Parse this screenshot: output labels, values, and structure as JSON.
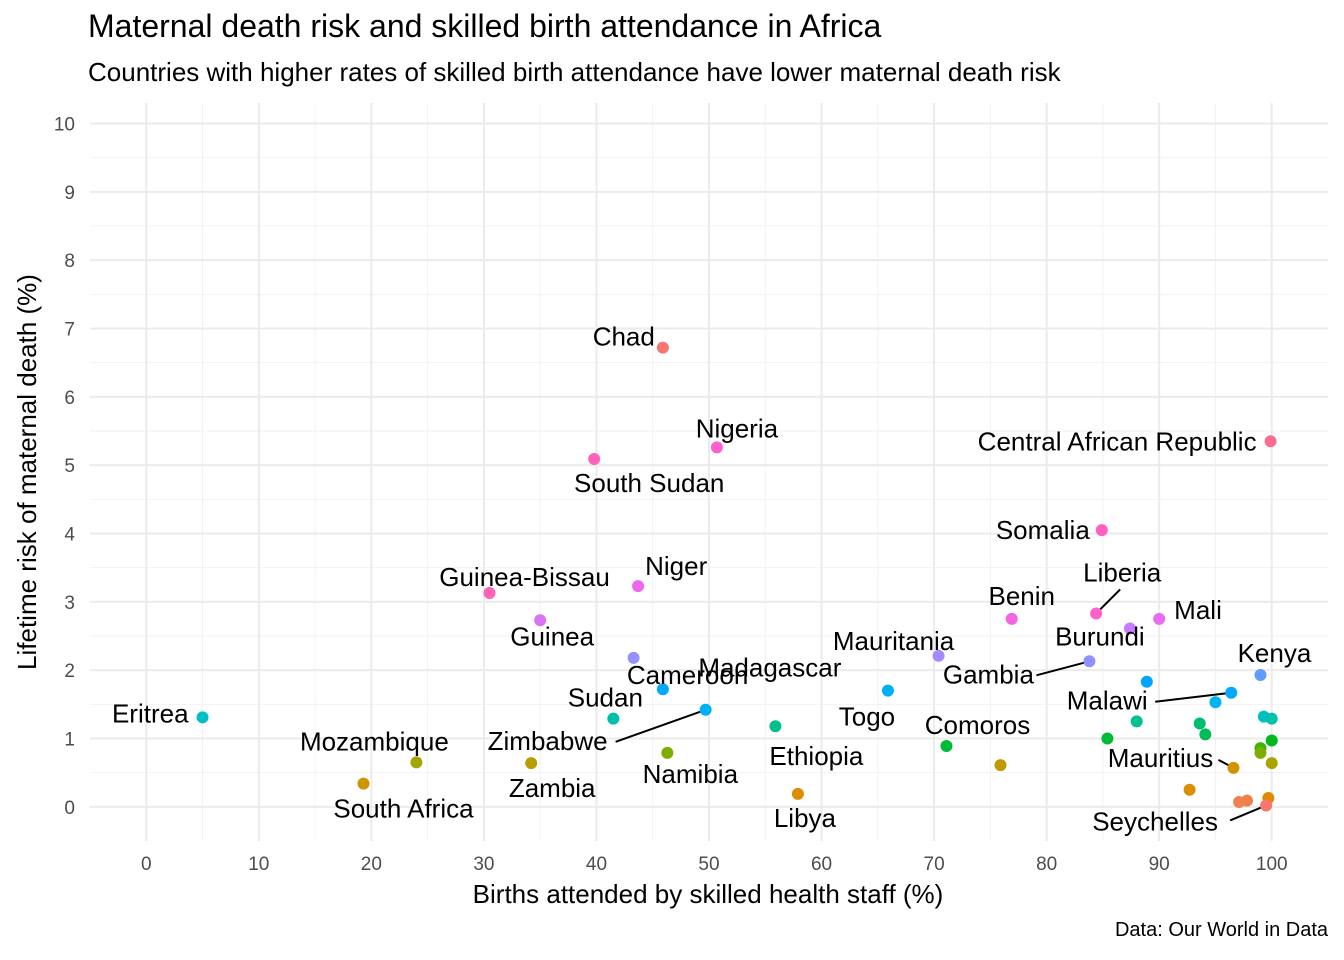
{
  "chart_data": {
    "type": "scatter",
    "title": "Maternal death risk and skilled birth attendance in Africa",
    "subtitle": "Countries with higher rates of skilled birth attendance have lower maternal death risk",
    "caption": "Data: Our World in Data",
    "xlabel": "Births attended by skilled health staff (%)",
    "ylabel": "Lifetime risk of maternal death (%)",
    "xlim": [
      -5,
      105
    ],
    "ylim": [
      -0.5,
      10.3
    ],
    "x_ticks": [
      0,
      10,
      20,
      30,
      40,
      50,
      60,
      70,
      80,
      90,
      100
    ],
    "y_ticks": [
      0,
      1,
      2,
      3,
      4,
      5,
      6,
      7,
      8,
      9,
      10
    ],
    "grid": true,
    "legend": "none",
    "points": [
      {
        "label": "Chad",
        "x": 45.9,
        "y": 6.72,
        "color": "#F8766D"
      },
      {
        "label": "Nigeria",
        "x": 50.7,
        "y": 5.26,
        "color": "#FD61D1"
      },
      {
        "label": "South Sudan",
        "x": 39.8,
        "y": 5.09,
        "color": "#FF62BC"
      },
      {
        "label": "Central African Republic",
        "x": 99.9,
        "y": 5.35,
        "color": "#FF6C91"
      },
      {
        "label": "Somalia",
        "x": 84.9,
        "y": 4.05,
        "color": "#FF61C3"
      },
      {
        "label": "Guinea-Bissau",
        "x": 30.5,
        "y": 3.13,
        "color": "#FF63B6"
      },
      {
        "label": "Niger",
        "x": 43.7,
        "y": 3.23,
        "color": "#F066EA"
      },
      {
        "label": "Liberia",
        "x": 84.4,
        "y": 2.83,
        "color": "#FF61C9"
      },
      {
        "label": "Guinea",
        "x": 35.0,
        "y": 2.73,
        "color": "#DB72FB"
      },
      {
        "label": "Benin",
        "x": 76.9,
        "y": 2.75,
        "color": "#F564E3"
      },
      {
        "label": "Mali",
        "x": 90.0,
        "y": 2.75,
        "color": "#E76BF3"
      },
      {
        "label": "Burundi",
        "x": 87.4,
        "y": 2.61,
        "color": "#C77CFF"
      },
      {
        "label": "Cameroon",
        "x": 43.3,
        "y": 2.18,
        "color": "#9590FF"
      },
      {
        "label": "Mauritania",
        "x": 70.4,
        "y": 2.21,
        "color": "#A58AFF"
      },
      {
        "label": "Gambia",
        "x": 83.8,
        "y": 2.13,
        "color": "#8F91FF"
      },
      {
        "label": "Kenya",
        "x": 99.0,
        "y": 1.93,
        "color": "#619CFF"
      },
      {
        "label": "Madagascar",
        "x": 45.9,
        "y": 1.72,
        "color": "#00A9FF"
      },
      {
        "label": "Togo",
        "x": 65.9,
        "y": 1.7,
        "color": "#00B0F6"
      },
      {
        "label": "Malawi",
        "x": 96.4,
        "y": 1.67,
        "color": "#00A9FF"
      },
      {
        "label": "",
        "x": 88.9,
        "y": 1.83,
        "color": "#00A5FF"
      },
      {
        "label": "",
        "x": 95.0,
        "y": 1.53,
        "color": "#00B4EF"
      },
      {
        "label": "Zimbabwe",
        "x": 49.7,
        "y": 1.42,
        "color": "#00B0F6"
      },
      {
        "label": "Eritrea",
        "x": 5.0,
        "y": 1.31,
        "color": "#00BFC4"
      },
      {
        "label": "Sudan",
        "x": 41.5,
        "y": 1.29,
        "color": "#00BFA8"
      },
      {
        "label": "",
        "x": 99.3,
        "y": 1.32,
        "color": "#00BFC4"
      },
      {
        "label": "",
        "x": 100.0,
        "y": 1.29,
        "color": "#00C1AB"
      },
      {
        "label": "Ethiopia",
        "x": 55.9,
        "y": 1.18,
        "color": "#00C08B"
      },
      {
        "label": "",
        "x": 93.6,
        "y": 1.22,
        "color": "#00BE70"
      },
      {
        "label": "",
        "x": 88.0,
        "y": 1.25,
        "color": "#00C094"
      },
      {
        "label": "",
        "x": 94.1,
        "y": 1.06,
        "color": "#00BC56"
      },
      {
        "label": "",
        "x": 85.4,
        "y": 1.0,
        "color": "#00BA38"
      },
      {
        "label": "",
        "x": 100.0,
        "y": 0.97,
        "color": "#00B81F"
      },
      {
        "label": "Comoros",
        "x": 71.1,
        "y": 0.89,
        "color": "#00BA38"
      },
      {
        "label": "",
        "x": 99.0,
        "y": 0.86,
        "color": "#39B600"
      },
      {
        "label": "",
        "x": 99.0,
        "y": 0.79,
        "color": "#7CAE00"
      },
      {
        "label": "Namibia",
        "x": 46.3,
        "y": 0.79,
        "color": "#7CAE00"
      },
      {
        "label": "Mozambique",
        "x": 24.0,
        "y": 0.65,
        "color": "#A3A500"
      },
      {
        "label": "Zambia",
        "x": 34.2,
        "y": 0.64,
        "color": "#B79F00"
      },
      {
        "label": "",
        "x": 100.0,
        "y": 0.64,
        "color": "#ABA300"
      },
      {
        "label": "",
        "x": 75.9,
        "y": 0.61,
        "color": "#C09B00"
      },
      {
        "label": "Mauritius",
        "x": 96.6,
        "y": 0.57,
        "color": "#D39200"
      },
      {
        "label": "South Africa",
        "x": 19.3,
        "y": 0.34,
        "color": "#CF9400"
      },
      {
        "label": "",
        "x": 92.7,
        "y": 0.25,
        "color": "#D89000"
      },
      {
        "label": "Libya",
        "x": 57.9,
        "y": 0.19,
        "color": "#DE8C00"
      },
      {
        "label": "",
        "x": 99.7,
        "y": 0.13,
        "color": "#E18A00"
      },
      {
        "label": "",
        "x": 97.8,
        "y": 0.09,
        "color": "#EF7F49"
      },
      {
        "label": "",
        "x": 97.1,
        "y": 0.07,
        "color": "#F0814E"
      },
      {
        "label": "Seychelles",
        "x": 99.5,
        "y": 0.02,
        "color": "#F8766D"
      }
    ]
  }
}
